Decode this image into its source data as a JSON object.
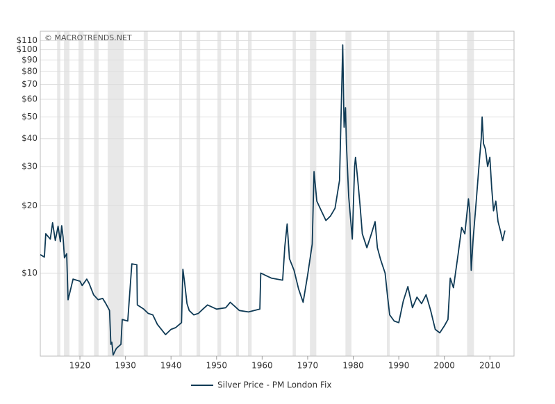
{
  "chart_data": {
    "type": "line",
    "source": "© MACROTRENDS.NET",
    "log_scale": true,
    "grid": true,
    "xlim": [
      1911.3,
      2015.3
    ],
    "ylim": [
      4.25,
      121
    ],
    "xticks": [
      1920,
      1930,
      1940,
      1950,
      1960,
      1970,
      1980,
      1990,
      2000,
      2010
    ],
    "yticks": [
      {
        "value": 10,
        "label": "$10"
      },
      {
        "value": 20,
        "label": "$20"
      },
      {
        "value": 30,
        "label": "$30"
      },
      {
        "value": 40,
        "label": "$40"
      },
      {
        "value": 50,
        "label": "$50"
      },
      {
        "value": 60,
        "label": "$60"
      },
      {
        "value": 70,
        "label": "$70"
      },
      {
        "value": 80,
        "label": "$80"
      },
      {
        "value": 90,
        "label": "$90"
      },
      {
        "value": 100,
        "label": "$100"
      },
      {
        "value": 110,
        "label": "$110"
      }
    ],
    "shaded_periods": [
      [
        1915.0,
        1915.7
      ],
      [
        1916.5,
        1917.7
      ],
      [
        1919.7,
        1920.8
      ],
      [
        1923.1,
        1924.1
      ],
      [
        1926.1,
        1929.6
      ],
      [
        1934.0,
        1934.9
      ],
      [
        1941.8,
        1942.4
      ],
      [
        1945.6,
        1946.4
      ],
      [
        1950.2,
        1951.0
      ],
      [
        1954.3,
        1954.9
      ],
      [
        1956.9,
        1957.7
      ],
      [
        1966.7,
        1967.4
      ],
      [
        1970.5,
        1971.9
      ],
      [
        1978.3,
        1979.6
      ],
      [
        1987.4,
        1988.0
      ],
      [
        1998.2,
        1998.9
      ],
      [
        2005.0,
        2006.5
      ]
    ],
    "x": [
      1911.3,
      1912.2,
      1912.5,
      1913.5,
      1914,
      1914.6,
      1915.2,
      1915.7,
      1916,
      1916.3,
      1916.6,
      1917.1,
      1917.4,
      1917.8,
      1918.5,
      1920,
      1920.5,
      1921.5,
      1922,
      1923,
      1924,
      1925,
      1925.7,
      1926.5,
      1926.8,
      1927,
      1927.3,
      1928,
      1929,
      1929.3,
      1930.5,
      1931.4,
      1932.5,
      1932.6,
      1934,
      1935,
      1936,
      1937,
      1938.8,
      1940,
      1941,
      1942.3,
      1942.6,
      1943,
      1943.5,
      1944,
      1945,
      1946,
      1947,
      1948,
      1950,
      1952,
      1953,
      1954,
      1955,
      1957,
      1959.5,
      1959.7,
      1962,
      1964.5,
      1965,
      1965.5,
      1966,
      1967,
      1968,
      1969,
      1970,
      1971,
      1971.4,
      1972,
      1973,
      1974,
      1975,
      1976,
      1977,
      1977.5,
      1977.7,
      1978,
      1978.3,
      1978.5,
      1979,
      1979.8,
      1980.3,
      1980.5,
      1981,
      1981.5,
      1982,
      1983,
      1984,
      1984.8,
      1985.3,
      1986,
      1987,
      1987.5,
      1988,
      1989,
      1990,
      1991,
      1992,
      1993,
      1994,
      1995,
      1996,
      1997,
      1998,
      1999,
      2000,
      2000.8,
      2001.3,
      2002,
      2003,
      2003.8,
      2004.5,
      2005.3,
      2005.6,
      2005.9,
      2006.3,
      2007,
      2007.7,
      2008.1,
      2008.3,
      2008.6,
      2009,
      2009.5,
      2010,
      2010.4,
      2010.8,
      2011.3,
      2011.8,
      2012.3,
      2012.8,
      2013.3
    ],
    "series": [
      {
        "name": "Silver Price - PM London Fix",
        "color": "#0f3a55",
        "values": [
          12.1,
          11.8,
          15.0,
          14.2,
          16.8,
          14.0,
          16.2,
          13.8,
          16.3,
          14.5,
          11.7,
          12.2,
          7.6,
          8.2,
          9.4,
          9.2,
          8.8,
          9.4,
          9.0,
          8.0,
          7.6,
          7.7,
          7.3,
          6.8,
          4.8,
          4.9,
          4.3,
          4.6,
          4.8,
          6.2,
          6.1,
          11.0,
          10.9,
          7.2,
          6.9,
          6.6,
          6.5,
          5.9,
          5.3,
          5.6,
          5.7,
          6.0,
          10.4,
          9.0,
          7.3,
          6.8,
          6.5,
          6.6,
          6.9,
          7.2,
          6.9,
          7.0,
          7.4,
          7.1,
          6.8,
          6.7,
          6.9,
          10.0,
          9.5,
          9.3,
          13.2,
          16.6,
          11.6,
          10.3,
          8.5,
          7.4,
          9.8,
          13.5,
          28.5,
          21.0,
          19.0,
          17.2,
          18.0,
          19.5,
          26.0,
          70.0,
          105.0,
          45.0,
          55.0,
          38.0,
          22.0,
          14.2,
          30.0,
          33.0,
          26.0,
          20.0,
          15.0,
          13.0,
          15.0,
          17.0,
          13.0,
          11.5,
          10.0,
          8.0,
          6.5,
          6.1,
          6.0,
          7.5,
          8.7,
          7.0,
          7.8,
          7.3,
          8.0,
          6.8,
          5.6,
          5.4,
          5.8,
          6.2,
          9.5,
          8.6,
          12.0,
          16.0,
          15.0,
          21.5,
          18.5,
          10.3,
          14.0,
          21.0,
          32.0,
          40.0,
          50.0,
          38.0,
          36.0,
          30.0,
          33.0,
          24.0,
          19.0,
          21.0,
          17.0,
          15.5,
          14.0,
          15.5
        ]
      }
    ]
  }
}
